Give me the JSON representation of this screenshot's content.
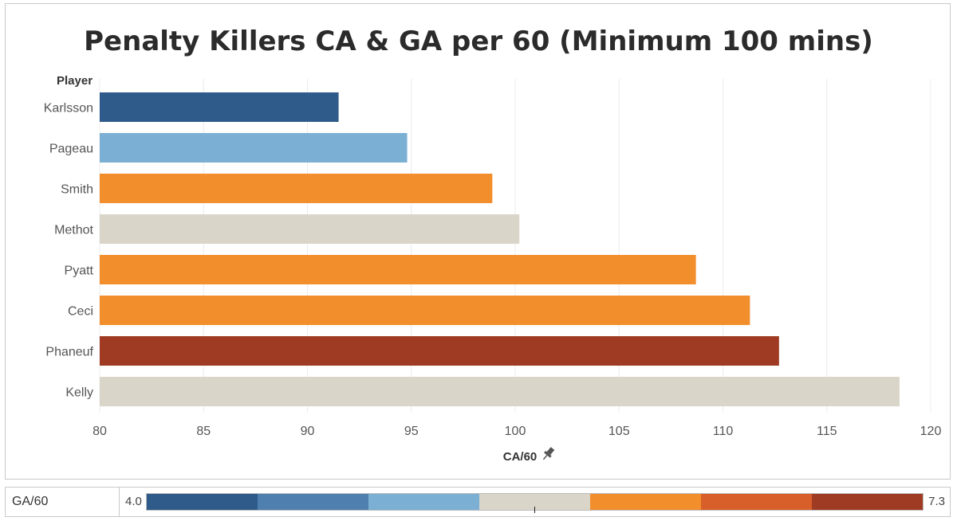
{
  "chart_data": {
    "type": "bar",
    "orientation": "horizontal",
    "title": "Penalty Killers CA & GA per 60 (Minimum 100 mins)",
    "row_header": "Player",
    "xlabel": "CA/60",
    "xlim": [
      80,
      120
    ],
    "xticks": [
      80,
      85,
      90,
      95,
      100,
      105,
      110,
      115,
      120
    ],
    "categories": [
      "Karlsson",
      "Pageau",
      "Smith",
      "Methot",
      "Pyatt",
      "Ceci",
      "Phaneuf",
      "Kelly"
    ],
    "values": [
      91.5,
      94.8,
      98.9,
      100.2,
      108.7,
      111.3,
      112.7,
      118.5
    ],
    "bar_colors": [
      "#2e5b8a",
      "#7bafd4",
      "#f28e2b",
      "#d9d5c9",
      "#f28e2b",
      "#f28e2b",
      "#9e3b22",
      "#d9d5c9"
    ],
    "grid": true,
    "color_legend": {
      "label": "GA/60",
      "min_label": "4.0",
      "max_label": "7.3",
      "ramp": [
        "#2e5b8a",
        "#4f7fae",
        "#7bafd4",
        "#d9d5c9",
        "#f28e2b",
        "#d95f2a",
        "#9e3b22"
      ]
    }
  }
}
